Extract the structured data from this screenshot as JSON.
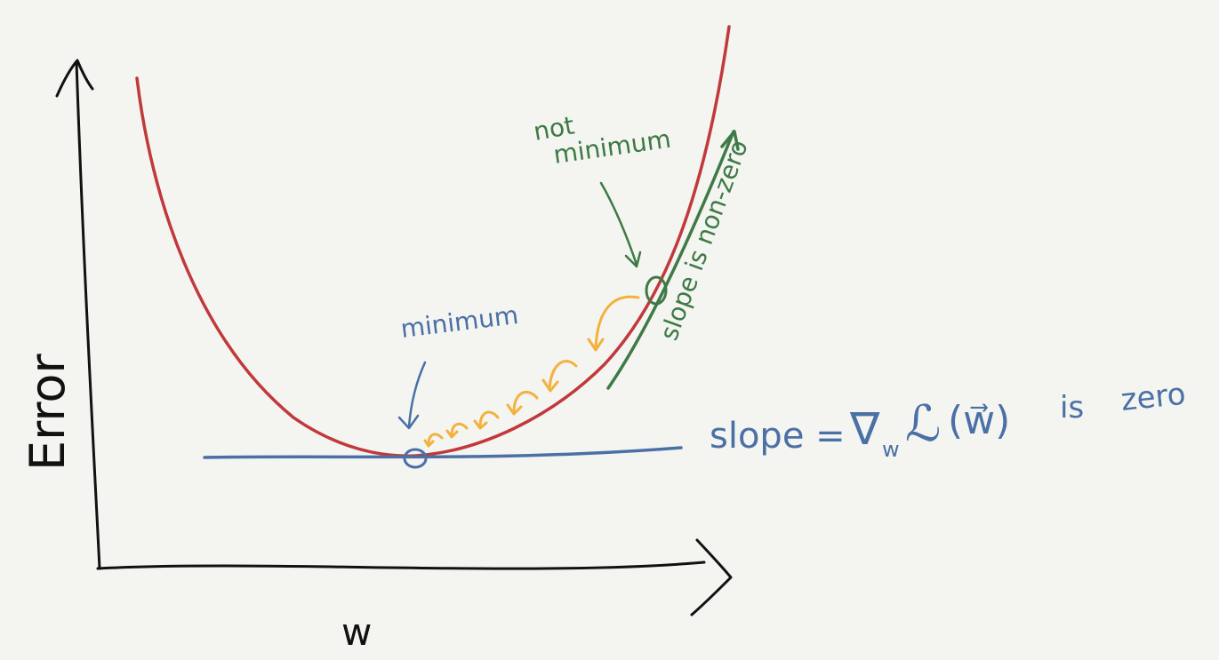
{
  "labels": {
    "y_axis": "Error",
    "x_axis": "w",
    "minimum": "minimum",
    "not_minimum_line1": "not",
    "not_minimum_line2": "minimum",
    "slope_nonzero": "slope is non-zero",
    "slope_zero_prefix": "slope =",
    "gradient_nabla": "∇",
    "gradient_sub": "w",
    "gradient_loss": "ℒ",
    "gradient_arg": "(w⃗)",
    "is_word": "is",
    "zero_word": "zero"
  },
  "colors": {
    "background": "#f4f4f1",
    "curve": "#c0393b",
    "axes": "#111111",
    "minimum_annotation": "#4a70a6",
    "nonzero_annotation": "#3d7a45",
    "descent_steps": "#f3b23e"
  }
}
